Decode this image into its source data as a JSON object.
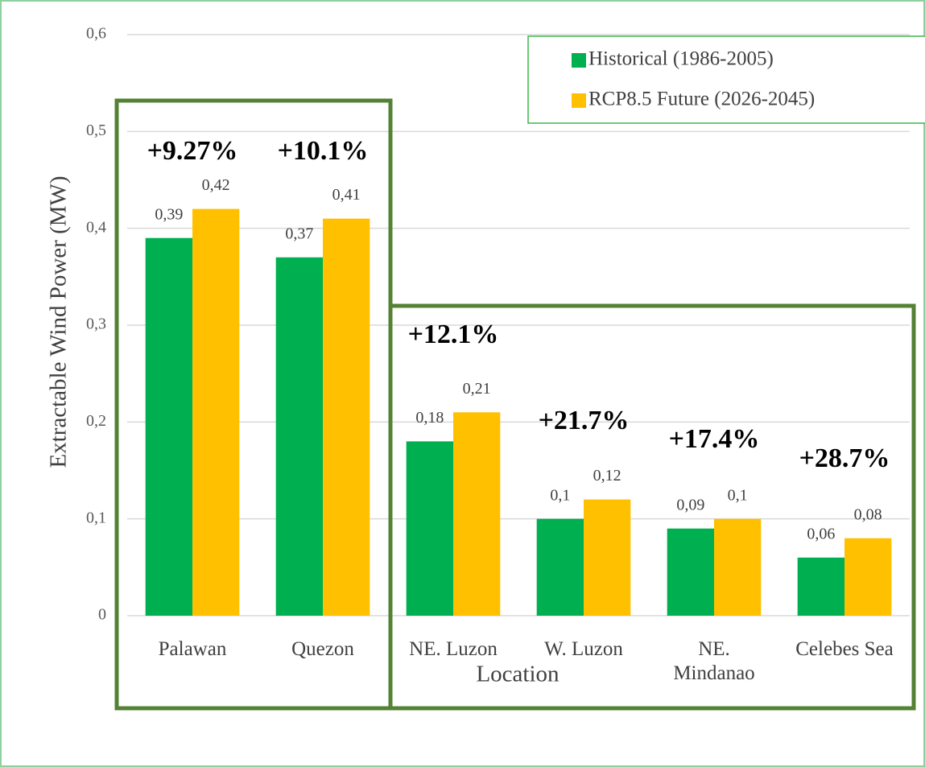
{
  "chart_data": {
    "type": "bar",
    "y_label": "Extractable Wind Power (MW)",
    "x_label": "Location",
    "categories": [
      "Palawan",
      "Quezon",
      "NE. Luzon",
      "W. Luzon",
      "NE. Mindanao",
      "Celebes Sea"
    ],
    "series": [
      {
        "name": "Historical (1986-2005)",
        "color": "#00b050",
        "values": [
          0.39,
          0.37,
          0.18,
          0.1,
          0.09,
          0.06
        ],
        "value_labels": [
          "0,39",
          "0,37",
          "0,18",
          "0,1",
          "0,09",
          "0,06"
        ]
      },
      {
        "name": "RCP8.5 Future (2026-2045)",
        "color": "#ffc000",
        "values": [
          0.42,
          0.41,
          0.21,
          0.12,
          0.1,
          0.08
        ],
        "value_labels": [
          "0,42",
          "0,41",
          "0,21",
          "0,12",
          "0,1",
          "0,08"
        ]
      }
    ],
    "annotations": [
      "+9.27%",
      "+10.1%",
      "+12.1%",
      "+21.7%",
      "+17.4%",
      "+28.7%"
    ],
    "ylim": [
      0,
      0.6
    ],
    "yticks": [
      0,
      {
        "value": 0.1,
        "label": "0,1"
      },
      {
        "value": 0.2,
        "label": "0,2"
      },
      {
        "value": 0.3,
        "label": "0,3"
      },
      {
        "value": 0.4,
        "label": "0,4"
      },
      {
        "value": 0.5,
        "label": "0,5"
      },
      {
        "value": 0.6,
        "label": "0,6"
      }
    ],
    "grid": true,
    "legend": "upper right"
  }
}
